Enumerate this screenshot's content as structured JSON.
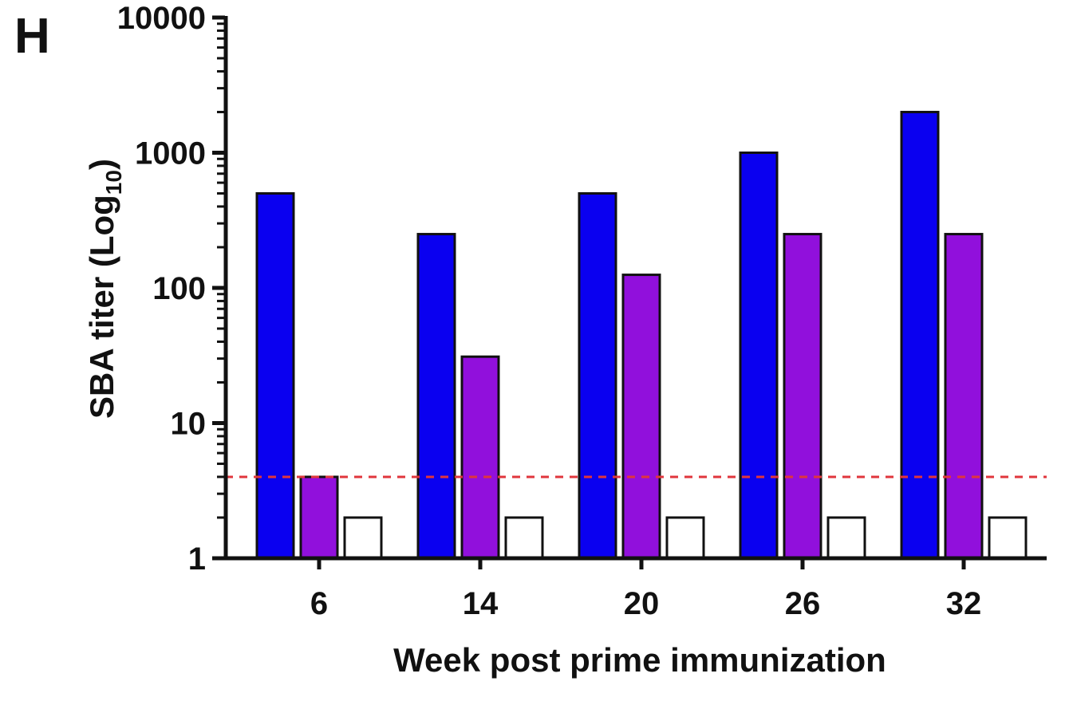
{
  "panel_label": "H",
  "chart_data": {
    "type": "bar",
    "title": "",
    "xlabel": "Week post prime immunization",
    "ylabel_main": "SBA titer (Log",
    "ylabel_sub": "10",
    "ylabel_close": ")",
    "yscale": "log",
    "ylim": [
      1,
      10000
    ],
    "yticks": [
      "1",
      "10",
      "100",
      "1000",
      "10000"
    ],
    "categories": [
      "6",
      "14",
      "20",
      "26",
      "32"
    ],
    "series": [
      {
        "values": [
          500,
          250,
          500,
          1000,
          2000
        ],
        "color": "#0a00f0"
      },
      {
        "values": [
          4,
          31,
          125,
          250,
          250
        ],
        "color": "#9110dc"
      },
      {
        "values": [
          2,
          2,
          2,
          2,
          2
        ],
        "color": "#ffffff"
      }
    ],
    "reference_line": {
      "value": 4,
      "color": "#e0363c",
      "style": "dashed"
    },
    "grid": false,
    "legend": "none"
  }
}
